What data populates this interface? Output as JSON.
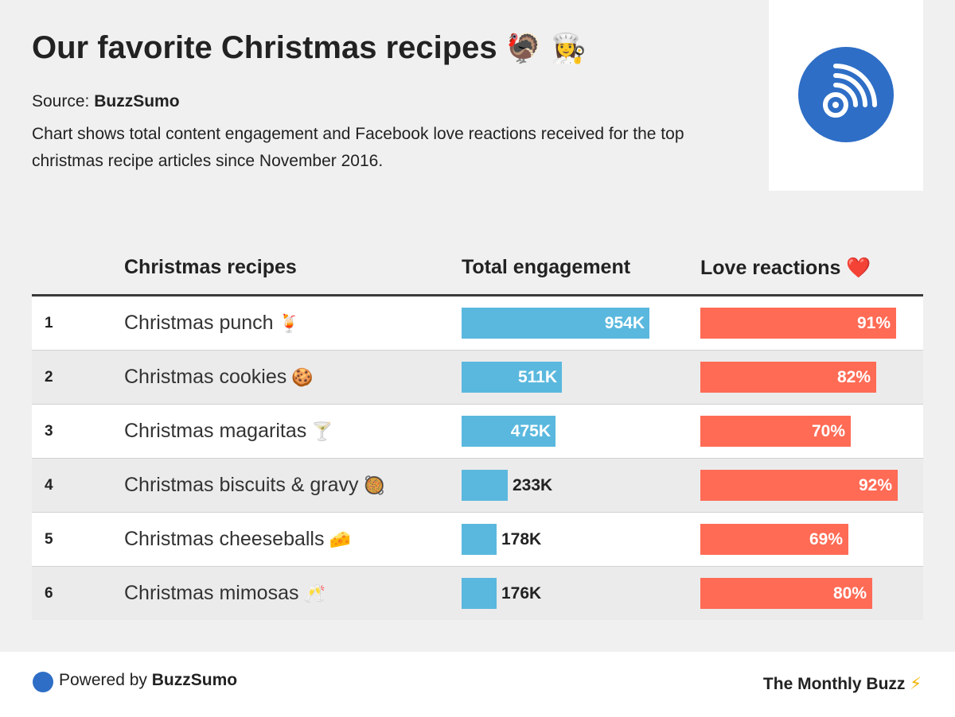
{
  "title": "Our favorite Christmas recipes",
  "title_emojis": "🦃 👩‍🍳",
  "source_prefix": "Source:",
  "source_name": "BuzzSumo",
  "description": "Chart shows total content engagement and Facebook love reactions received for the top christmas recipe articles since November 2016.",
  "logo": {
    "icon": "rss-feed-icon",
    "color": "#2e6ec6"
  },
  "colors": {
    "engagement": "#5ab8de",
    "love": "#ff6b55"
  },
  "chart_data": {
    "type": "table",
    "columns": [
      "Christmas recipes",
      "Total engagement",
      "Love reactions"
    ],
    "love_header_emoji": "❤️",
    "engagement_max": 954,
    "rows": [
      {
        "rank": "1",
        "name": "Christmas punch",
        "emoji": "🍹",
        "engagement": 954,
        "engagement_label": "954K",
        "love": 91,
        "love_label": "91%"
      },
      {
        "rank": "2",
        "name": "Christmas cookies",
        "emoji": "🍪",
        "engagement": 511,
        "engagement_label": "511K",
        "love": 82,
        "love_label": "82%"
      },
      {
        "rank": "3",
        "name": "Christmas magaritas",
        "emoji": "🍸",
        "engagement": 475,
        "engagement_label": "475K",
        "love": 70,
        "love_label": "70%"
      },
      {
        "rank": "4",
        "name": "Christmas biscuits & gravy",
        "emoji": "🥘",
        "engagement": 233,
        "engagement_label": "233K",
        "love": 92,
        "love_label": "92%"
      },
      {
        "rank": "5",
        "name": "Christmas cheeseballs",
        "emoji": "🧀",
        "engagement": 178,
        "engagement_label": "178K",
        "love": 69,
        "love_label": "69%"
      },
      {
        "rank": "6",
        "name": "Christmas mimosas",
        "emoji": "🥂",
        "engagement": 176,
        "engagement_label": "176K",
        "love": 80,
        "love_label": "80%"
      }
    ]
  },
  "footer": {
    "powered_prefix": "Powered by",
    "powered_name": "BuzzSumo",
    "brand": "The Monthly Buzz",
    "brand_emoji": "⚡"
  }
}
